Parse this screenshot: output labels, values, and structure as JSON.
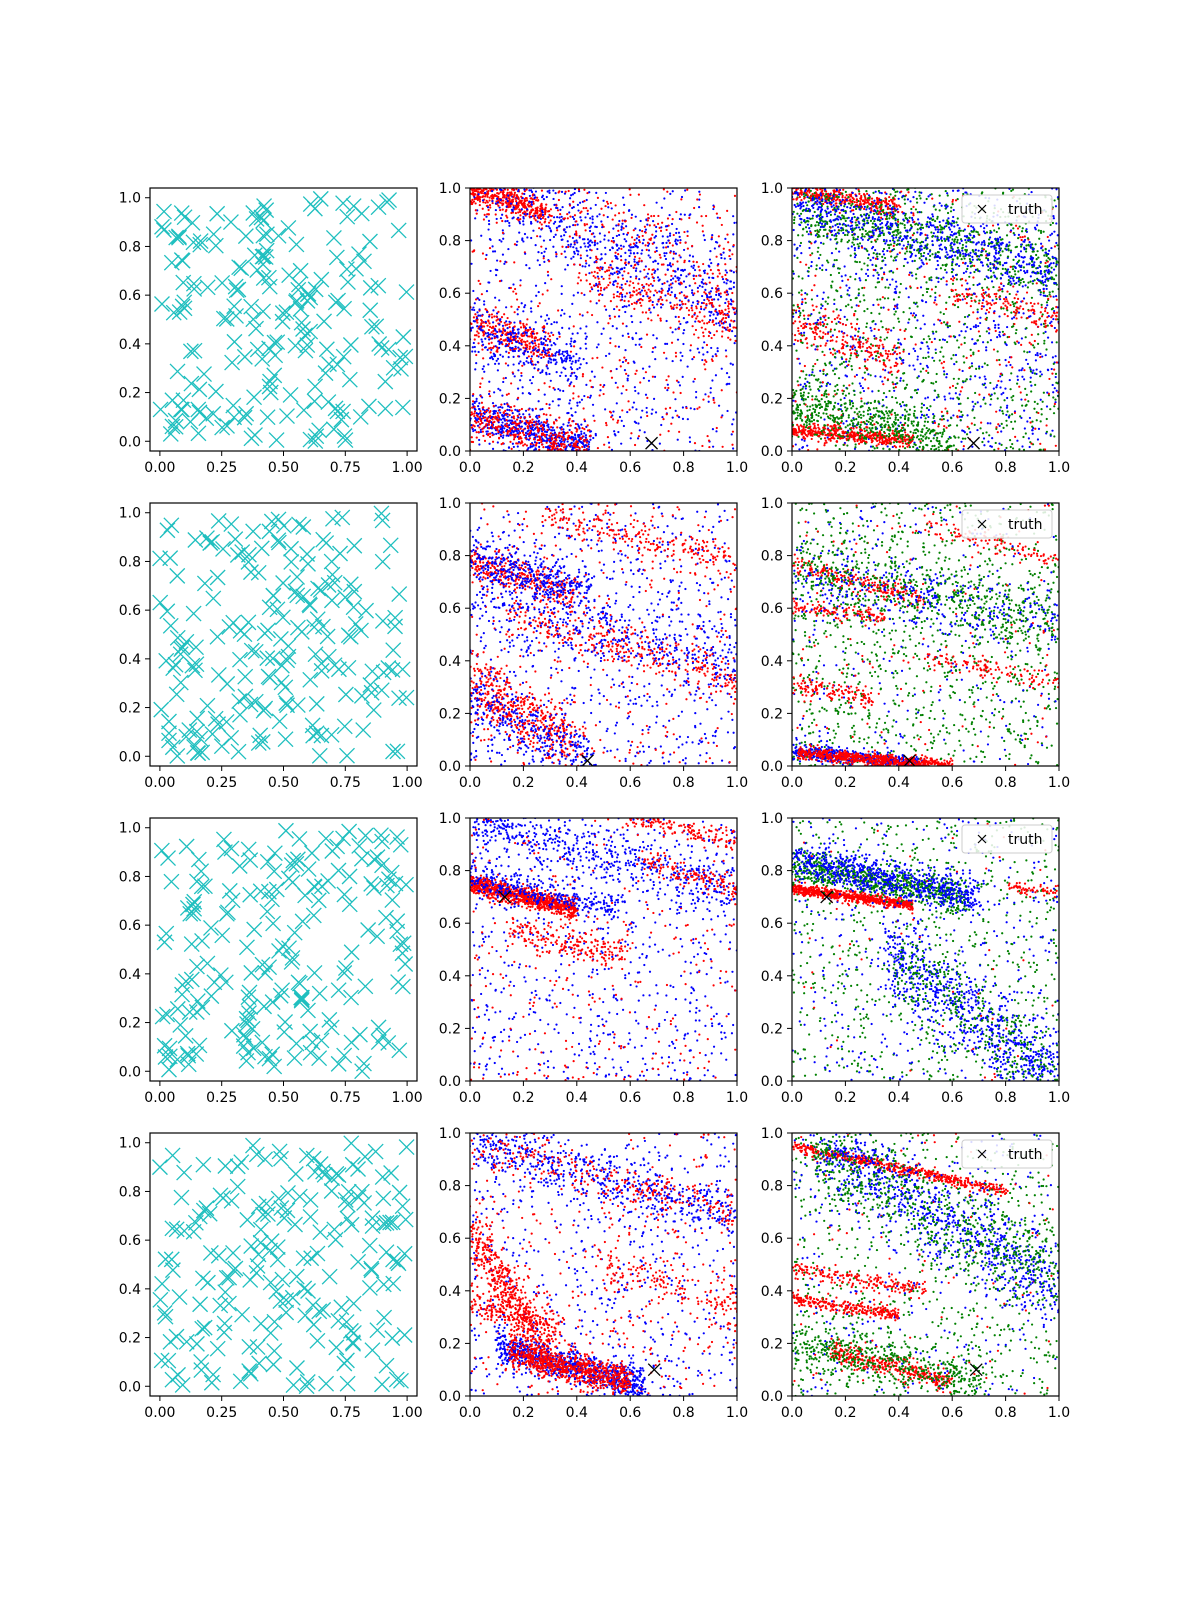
{
  "chart_data": [
    {
      "row": 1,
      "col": 1,
      "type": "scatter",
      "marker": "x",
      "color": "#1fbfbf",
      "n_points": 200,
      "seed": 11,
      "xlim": [
        -0.04,
        1.04
      ],
      "ylim": [
        -0.04,
        1.04
      ],
      "xticks": [
        "0.00",
        "0.25",
        "0.50",
        "0.75",
        "1.00"
      ],
      "yticks": [
        "0.0",
        "0.2",
        "0.4",
        "0.6",
        "0.8",
        "1.0"
      ],
      "xlabel": "",
      "ylabel": ""
    },
    {
      "row": 1,
      "col": 2,
      "type": "scatter",
      "marker": "dot",
      "series_colors": [
        "#0000ff",
        "#ff0000"
      ],
      "xlim": [
        0,
        1
      ],
      "ylim": [
        0,
        1
      ],
      "xticks": [
        "0.0",
        "0.2",
        "0.4",
        "0.6",
        "0.8",
        "1.0"
      ],
      "yticks": [
        "0.0",
        "0.2",
        "0.4",
        "0.6",
        "0.8",
        "1.0"
      ],
      "truth": [
        0.68,
        0.03
      ],
      "bands": [
        {
          "color": "#ff0000",
          "x0": 0.0,
          "y0": 0.99,
          "x1": 0.3,
          "y1": 0.91,
          "spread": 0.025,
          "n": 420
        },
        {
          "color": "#ff0000",
          "x0": 0.0,
          "y0": 0.49,
          "x1": 0.3,
          "y1": 0.38,
          "spread": 0.035,
          "n": 260
        },
        {
          "color": "#0000ff",
          "x0": 0.0,
          "y0": 0.47,
          "x1": 0.4,
          "y1": 0.33,
          "spread": 0.05,
          "n": 260
        },
        {
          "color": "#0000ff",
          "x0": 0.0,
          "y0": 0.14,
          "x1": 0.45,
          "y1": 0.01,
          "spread": 0.04,
          "n": 520
        },
        {
          "color": "#ff0000",
          "x0": 0.0,
          "y0": 0.13,
          "x1": 0.45,
          "y1": 0.01,
          "spread": 0.04,
          "n": 380
        },
        {
          "color": "#0000ff",
          "x0": 0.05,
          "y0": 1.0,
          "x1": 1.0,
          "y1": 0.55,
          "spread": 0.08,
          "n": 500
        },
        {
          "color": "#ff0000",
          "x0": 0.4,
          "y0": 0.68,
          "x1": 1.0,
          "y1": 0.49,
          "spread": 0.05,
          "n": 220
        },
        {
          "color": "#ff0000",
          "x0": 0.3,
          "y0": 1.0,
          "x1": 1.0,
          "y1": 0.62,
          "spread": 0.1,
          "n": 160
        }
      ],
      "noise": [
        {
          "color": "#0000ff",
          "n": 700
        },
        {
          "color": "#ff0000",
          "n": 400
        }
      ],
      "seed": 21,
      "xlabel": "",
      "ylabel": ""
    },
    {
      "row": 1,
      "col": 3,
      "type": "scatter",
      "marker": "dot",
      "series_colors": [
        "#0000ff",
        "#008000",
        "#ff0000"
      ],
      "xlim": [
        0,
        1
      ],
      "ylim": [
        0,
        1
      ],
      "xticks": [
        "0.0",
        "0.2",
        "0.4",
        "0.6",
        "0.8",
        "1.0"
      ],
      "yticks": [
        "0.0",
        "0.2",
        "0.4",
        "0.6",
        "0.8",
        "1.0"
      ],
      "truth": [
        0.68,
        0.03
      ],
      "legend": {
        "label": "truth",
        "position": "upper right"
      },
      "bands": [
        {
          "color": "#ff0000",
          "x0": 0.0,
          "y0": 0.99,
          "x1": 0.4,
          "y1": 0.93,
          "spread": 0.02,
          "n": 320
        },
        {
          "color": "#ff0000",
          "x0": 0.0,
          "y0": 0.08,
          "x1": 0.45,
          "y1": 0.04,
          "spread": 0.015,
          "n": 420
        },
        {
          "color": "#ff0000",
          "x0": 0.0,
          "y0": 0.5,
          "x1": 0.4,
          "y1": 0.35,
          "spread": 0.04,
          "n": 200
        },
        {
          "color": "#008000",
          "x0": 0.0,
          "y0": 0.92,
          "x1": 1.0,
          "y1": 0.7,
          "spread": 0.06,
          "n": 600
        },
        {
          "color": "#0000ff",
          "x0": 0.0,
          "y0": 0.95,
          "x1": 1.0,
          "y1": 0.68,
          "spread": 0.06,
          "n": 600
        },
        {
          "color": "#008000",
          "x0": 0.0,
          "y0": 0.18,
          "x1": 0.6,
          "y1": 0.03,
          "spread": 0.05,
          "n": 500
        },
        {
          "color": "#ff0000",
          "x0": 0.6,
          "y0": 0.6,
          "x1": 1.0,
          "y1": 0.5,
          "spread": 0.03,
          "n": 140
        }
      ],
      "noise": [
        {
          "color": "#0000ff",
          "n": 800
        },
        {
          "color": "#008000",
          "n": 900
        },
        {
          "color": "#ff0000",
          "n": 300
        }
      ],
      "seed": 31,
      "xlabel": "",
      "ylabel": ""
    },
    {
      "row": 2,
      "col": 1,
      "type": "scatter",
      "marker": "x",
      "color": "#1fbfbf",
      "n_points": 200,
      "seed": 12,
      "xlim": [
        -0.04,
        1.04
      ],
      "ylim": [
        -0.04,
        1.04
      ],
      "xticks": [
        "0.00",
        "0.25",
        "0.50",
        "0.75",
        "1.00"
      ],
      "yticks": [
        "0.0",
        "0.2",
        "0.4",
        "0.6",
        "0.8",
        "1.0"
      ],
      "xlabel": "",
      "ylabel": ""
    },
    {
      "row": 2,
      "col": 2,
      "type": "scatter",
      "marker": "dot",
      "series_colors": [
        "#0000ff",
        "#ff0000"
      ],
      "xlim": [
        0,
        1
      ],
      "ylim": [
        0,
        1
      ],
      "xticks": [
        "0.0",
        "0.2",
        "0.4",
        "0.6",
        "0.8",
        "1.0"
      ],
      "yticks": [
        "0.0",
        "0.2",
        "0.4",
        "0.6",
        "0.8",
        "1.0"
      ],
      "truth": [
        0.44,
        0.02
      ],
      "bands": [
        {
          "color": "#ff0000",
          "x0": 0.0,
          "y0": 0.77,
          "x1": 0.4,
          "y1": 0.66,
          "spread": 0.035,
          "n": 300
        },
        {
          "color": "#0000ff",
          "x0": 0.0,
          "y0": 0.79,
          "x1": 0.45,
          "y1": 0.66,
          "spread": 0.04,
          "n": 300
        },
        {
          "color": "#ff0000",
          "x0": 0.0,
          "y0": 0.3,
          "x1": 0.4,
          "y1": 0.1,
          "spread": 0.06,
          "n": 450
        },
        {
          "color": "#0000ff",
          "x0": 0.0,
          "y0": 0.25,
          "x1": 0.45,
          "y1": 0.02,
          "spread": 0.06,
          "n": 300
        },
        {
          "color": "#ff0000",
          "x0": 0.15,
          "y0": 0.58,
          "x1": 1.0,
          "y1": 0.33,
          "spread": 0.04,
          "n": 320
        },
        {
          "color": "#ff0000",
          "x0": 0.25,
          "y0": 0.96,
          "x1": 1.0,
          "y1": 0.78,
          "spread": 0.03,
          "n": 200
        },
        {
          "color": "#0000ff",
          "x0": 0.0,
          "y0": 0.66,
          "x1": 1.0,
          "y1": 0.4,
          "spread": 0.08,
          "n": 400
        }
      ],
      "noise": [
        {
          "color": "#0000ff",
          "n": 700
        },
        {
          "color": "#ff0000",
          "n": 350
        }
      ],
      "seed": 22,
      "xlabel": "",
      "ylabel": ""
    },
    {
      "row": 2,
      "col": 3,
      "type": "scatter",
      "marker": "dot",
      "series_colors": [
        "#0000ff",
        "#008000",
        "#ff0000"
      ],
      "xlim": [
        0,
        1
      ],
      "ylim": [
        0,
        1
      ],
      "xticks": [
        "0.0",
        "0.2",
        "0.4",
        "0.6",
        "0.8",
        "1.0"
      ],
      "yticks": [
        "0.0",
        "0.2",
        "0.4",
        "0.6",
        "0.8",
        "1.0"
      ],
      "truth": [
        0.44,
        0.02
      ],
      "legend": {
        "label": "truth",
        "position": "upper right"
      },
      "bands": [
        {
          "color": "#0000ff",
          "x0": 0.0,
          "y0": 0.06,
          "x1": 0.5,
          "y1": 0.0,
          "spread": 0.015,
          "n": 500
        },
        {
          "color": "#ff0000",
          "x0": 0.02,
          "y0": 0.05,
          "x1": 0.6,
          "y1": 0.0,
          "spread": 0.012,
          "n": 650
        },
        {
          "color": "#ff0000",
          "x0": 0.0,
          "y0": 0.31,
          "x1": 0.3,
          "y1": 0.25,
          "spread": 0.02,
          "n": 120
        },
        {
          "color": "#ff0000",
          "x0": 0.0,
          "y0": 0.77,
          "x1": 0.5,
          "y1": 0.63,
          "spread": 0.02,
          "n": 200
        },
        {
          "color": "#ff0000",
          "x0": 0.0,
          "y0": 0.61,
          "x1": 0.35,
          "y1": 0.56,
          "spread": 0.015,
          "n": 120
        },
        {
          "color": "#ff0000",
          "x0": 0.5,
          "y0": 0.92,
          "x1": 1.0,
          "y1": 0.78,
          "spread": 0.02,
          "n": 110
        },
        {
          "color": "#ff0000",
          "x0": 0.5,
          "y0": 0.42,
          "x1": 1.0,
          "y1": 0.31,
          "spread": 0.02,
          "n": 110
        },
        {
          "color": "#008000",
          "x0": 0.0,
          "y0": 0.74,
          "x1": 1.0,
          "y1": 0.55,
          "spread": 0.07,
          "n": 500
        },
        {
          "color": "#0000ff",
          "x0": 0.0,
          "y0": 0.72,
          "x1": 1.0,
          "y1": 0.55,
          "spread": 0.07,
          "n": 300
        }
      ],
      "noise": [
        {
          "color": "#008000",
          "n": 1000
        },
        {
          "color": "#0000ff",
          "n": 250
        },
        {
          "color": "#ff0000",
          "n": 150
        }
      ],
      "seed": 32,
      "xlabel": "",
      "ylabel": ""
    },
    {
      "row": 3,
      "col": 1,
      "type": "scatter",
      "marker": "x",
      "color": "#1fbfbf",
      "n_points": 200,
      "seed": 13,
      "xlim": [
        -0.04,
        1.04
      ],
      "ylim": [
        -0.04,
        1.04
      ],
      "xticks": [
        "0.00",
        "0.25",
        "0.50",
        "0.75",
        "1.00"
      ],
      "yticks": [
        "0.0",
        "0.2",
        "0.4",
        "0.6",
        "0.8",
        "1.0"
      ],
      "xlabel": "",
      "ylabel": ""
    },
    {
      "row": 3,
      "col": 2,
      "type": "scatter",
      "marker": "dot",
      "series_colors": [
        "#0000ff",
        "#ff0000"
      ],
      "xlim": [
        0,
        1
      ],
      "ylim": [
        0,
        1
      ],
      "xticks": [
        "0.0",
        "0.2",
        "0.4",
        "0.6",
        "0.8",
        "1.0"
      ],
      "yticks": [
        "0.0",
        "0.2",
        "0.4",
        "0.6",
        "0.8",
        "1.0"
      ],
      "truth": [
        0.13,
        0.7
      ],
      "bands": [
        {
          "color": "#ff0000",
          "x0": 0.0,
          "y0": 0.75,
          "x1": 0.4,
          "y1": 0.65,
          "spread": 0.018,
          "n": 900
        },
        {
          "color": "#0000ff",
          "x0": 0.0,
          "y0": 0.77,
          "x1": 0.55,
          "y1": 0.66,
          "spread": 0.03,
          "n": 300
        },
        {
          "color": "#ff0000",
          "x0": 0.15,
          "y0": 0.57,
          "x1": 0.6,
          "y1": 0.47,
          "spread": 0.03,
          "n": 200
        },
        {
          "color": "#0000ff",
          "x0": 0.0,
          "y0": 0.98,
          "x1": 1.0,
          "y1": 0.72,
          "spread": 0.05,
          "n": 500
        },
        {
          "color": "#ff0000",
          "x0": 0.6,
          "y0": 1.0,
          "x1": 1.0,
          "y1": 0.91,
          "spread": 0.02,
          "n": 150
        },
        {
          "color": "#ff0000",
          "x0": 0.65,
          "y0": 0.84,
          "x1": 1.0,
          "y1": 0.73,
          "spread": 0.02,
          "n": 120
        }
      ],
      "noise": [
        {
          "color": "#0000ff",
          "n": 700
        },
        {
          "color": "#ff0000",
          "n": 300
        }
      ],
      "seed": 23,
      "xlabel": "",
      "ylabel": ""
    },
    {
      "row": 3,
      "col": 3,
      "type": "scatter",
      "marker": "dot",
      "series_colors": [
        "#0000ff",
        "#008000",
        "#ff0000"
      ],
      "xlim": [
        0,
        1
      ],
      "ylim": [
        0,
        1
      ],
      "xticks": [
        "0.0",
        "0.2",
        "0.4",
        "0.6",
        "0.8",
        "1.0"
      ],
      "yticks": [
        "0.0",
        "0.2",
        "0.4",
        "0.6",
        "0.8",
        "1.0"
      ],
      "truth": [
        0.13,
        0.7
      ],
      "legend": {
        "label": "truth",
        "position": "upper right"
      },
      "bands": [
        {
          "color": "#ff0000",
          "x0": 0.0,
          "y0": 0.73,
          "x1": 0.45,
          "y1": 0.67,
          "spread": 0.01,
          "n": 700
        },
        {
          "color": "#008000",
          "x0": 0.0,
          "y0": 0.82,
          "x1": 0.65,
          "y1": 0.7,
          "spread": 0.03,
          "n": 700
        },
        {
          "color": "#0000ff",
          "x0": 0.0,
          "y0": 0.84,
          "x1": 0.7,
          "y1": 0.7,
          "spread": 0.035,
          "n": 700
        },
        {
          "color": "#0000ff",
          "x0": 0.35,
          "y0": 0.5,
          "x1": 1.0,
          "y1": 0.0,
          "spread": 0.08,
          "n": 700
        },
        {
          "color": "#008000",
          "x0": 0.35,
          "y0": 0.5,
          "x1": 1.0,
          "y1": 0.0,
          "spread": 0.08,
          "n": 300
        },
        {
          "color": "#ff0000",
          "x0": 0.8,
          "y0": 0.74,
          "x1": 1.0,
          "y1": 0.72,
          "spread": 0.01,
          "n": 60
        }
      ],
      "noise": [
        {
          "color": "#008000",
          "n": 700
        },
        {
          "color": "#0000ff",
          "n": 400
        },
        {
          "color": "#ff0000",
          "n": 60
        }
      ],
      "seed": 33,
      "xlabel": "",
      "ylabel": ""
    },
    {
      "row": 4,
      "col": 1,
      "type": "scatter",
      "marker": "x",
      "color": "#1fbfbf",
      "n_points": 200,
      "seed": 14,
      "xlim": [
        -0.04,
        1.04
      ],
      "ylim": [
        -0.04,
        1.04
      ],
      "xticks": [
        "0.00",
        "0.25",
        "0.50",
        "0.75",
        "1.00"
      ],
      "yticks": [
        "0.0",
        "0.2",
        "0.4",
        "0.6",
        "0.8",
        "1.0"
      ],
      "xlabel": "",
      "ylabel": ""
    },
    {
      "row": 4,
      "col": 2,
      "type": "scatter",
      "marker": "dot",
      "series_colors": [
        "#0000ff",
        "#ff0000"
      ],
      "xlim": [
        0,
        1
      ],
      "ylim": [
        0,
        1
      ],
      "xticks": [
        "0.0",
        "0.2",
        "0.4",
        "0.6",
        "0.8",
        "1.0"
      ],
      "yticks": [
        "0.0",
        "0.2",
        "0.4",
        "0.6",
        "0.8",
        "1.0"
      ],
      "truth": [
        0.69,
        0.1
      ],
      "bands": [
        {
          "color": "#0000ff",
          "x0": 0.1,
          "y0": 0.19,
          "x1": 0.65,
          "y1": 0.04,
          "spread": 0.03,
          "n": 800
        },
        {
          "color": "#ff0000",
          "x0": 0.15,
          "y0": 0.17,
          "x1": 0.6,
          "y1": 0.05,
          "spread": 0.03,
          "n": 700
        },
        {
          "color": "#ff0000",
          "x0": 0.0,
          "y0": 0.62,
          "x1": 0.3,
          "y1": 0.15,
          "spread": 0.06,
          "n": 500
        },
        {
          "color": "#ff0000",
          "x0": 0.0,
          "y0": 0.35,
          "x1": 0.35,
          "y1": 0.27,
          "spread": 0.03,
          "n": 180
        },
        {
          "color": "#0000ff",
          "x0": 0.0,
          "y0": 0.97,
          "x1": 1.0,
          "y1": 0.68,
          "spread": 0.05,
          "n": 500
        },
        {
          "color": "#ff0000",
          "x0": 0.0,
          "y0": 0.96,
          "x1": 1.0,
          "y1": 0.7,
          "spread": 0.04,
          "n": 250
        },
        {
          "color": "#ff0000",
          "x0": 0.5,
          "y0": 0.48,
          "x1": 1.0,
          "y1": 0.35,
          "spread": 0.04,
          "n": 150
        }
      ],
      "noise": [
        {
          "color": "#0000ff",
          "n": 650
        },
        {
          "color": "#ff0000",
          "n": 350
        }
      ],
      "seed": 24,
      "xlabel": "",
      "ylabel": ""
    },
    {
      "row": 4,
      "col": 3,
      "type": "scatter",
      "marker": "dot",
      "series_colors": [
        "#0000ff",
        "#008000",
        "#ff0000"
      ],
      "xlim": [
        0,
        1
      ],
      "ylim": [
        0,
        1
      ],
      "xticks": [
        "0.0",
        "0.2",
        "0.4",
        "0.6",
        "0.8",
        "1.0"
      ],
      "yticks": [
        "0.0",
        "0.2",
        "0.4",
        "0.6",
        "0.8",
        "1.0"
      ],
      "truth": [
        0.69,
        0.1
      ],
      "legend": {
        "label": "truth",
        "position": "upper right"
      },
      "bands": [
        {
          "color": "#ff0000",
          "x0": 0.0,
          "y0": 0.95,
          "x1": 0.8,
          "y1": 0.78,
          "spread": 0.012,
          "n": 500
        },
        {
          "color": "#ff0000",
          "x0": 0.0,
          "y0": 0.37,
          "x1": 0.4,
          "y1": 0.31,
          "spread": 0.012,
          "n": 250
        },
        {
          "color": "#ff0000",
          "x0": 0.0,
          "y0": 0.48,
          "x1": 0.5,
          "y1": 0.4,
          "spread": 0.015,
          "n": 180
        },
        {
          "color": "#ff0000",
          "x0": 0.15,
          "y0": 0.17,
          "x1": 0.6,
          "y1": 0.05,
          "spread": 0.02,
          "n": 350
        },
        {
          "color": "#008000",
          "x0": 0.0,
          "y0": 0.2,
          "x1": 0.7,
          "y1": 0.05,
          "spread": 0.05,
          "n": 500
        },
        {
          "color": "#0000ff",
          "x0": 0.1,
          "y0": 0.95,
          "x1": 1.0,
          "y1": 0.42,
          "spread": 0.08,
          "n": 800
        },
        {
          "color": "#008000",
          "x0": 0.1,
          "y0": 0.92,
          "x1": 1.0,
          "y1": 0.45,
          "spread": 0.08,
          "n": 600
        }
      ],
      "noise": [
        {
          "color": "#008000",
          "n": 700
        },
        {
          "color": "#0000ff",
          "n": 300
        },
        {
          "color": "#ff0000",
          "n": 100
        }
      ],
      "seed": 34,
      "xlabel": "",
      "ylabel": ""
    }
  ]
}
